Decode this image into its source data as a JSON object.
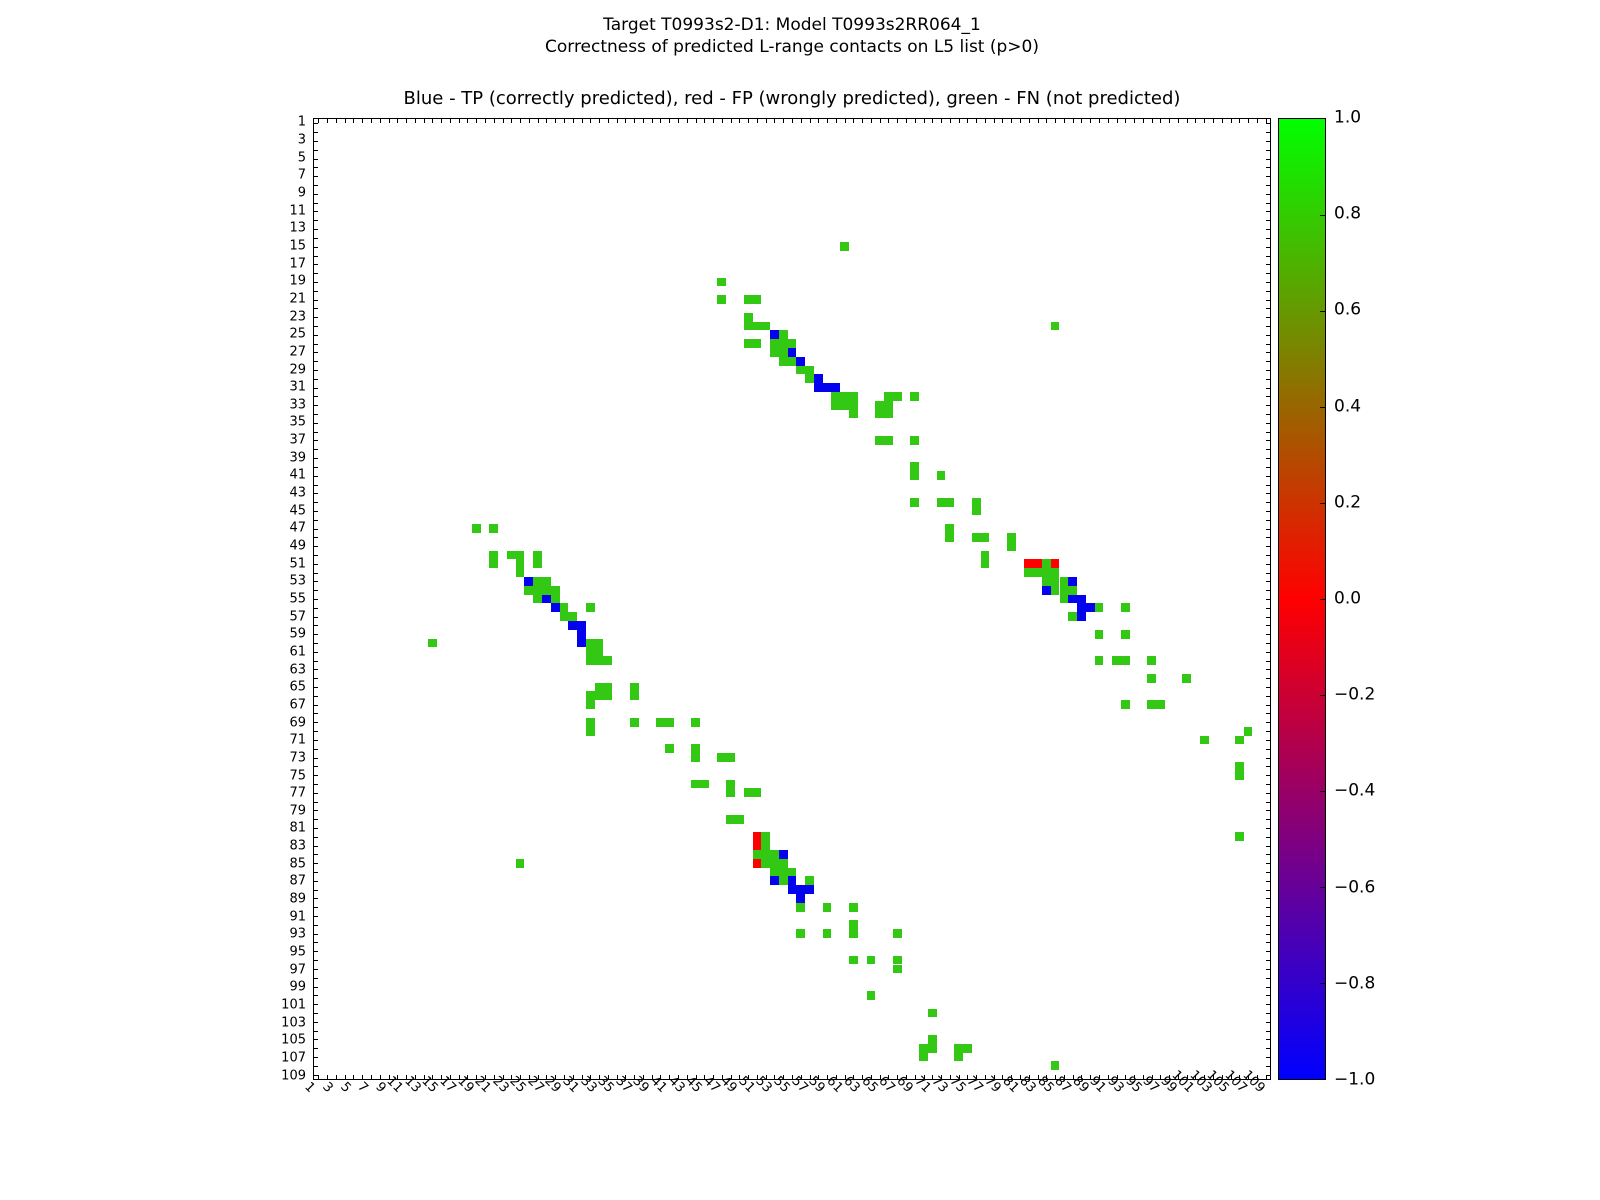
{
  "figure": {
    "suptitle_line1": "Target T0993s2-D1: Model T0993s2RR064_1",
    "suptitle_line2": "Correctness of predicted L-range contacts on L5 list (p>0)",
    "axes_title": "Blue - TP (correctly predicted), red - FP (wrongly predicted), green - FN (not predicted)"
  },
  "axes": {
    "x_min": 1,
    "x_max": 109,
    "y_min": 1,
    "y_max": 109,
    "x_tick_labels": [
      1,
      3,
      5,
      7,
      9,
      11,
      13,
      15,
      17,
      19,
      21,
      23,
      25,
      27,
      29,
      31,
      33,
      35,
      37,
      39,
      41,
      43,
      45,
      47,
      49,
      51,
      53,
      55,
      57,
      59,
      61,
      63,
      65,
      67,
      69,
      71,
      73,
      75,
      77,
      79,
      81,
      83,
      85,
      87,
      89,
      91,
      93,
      95,
      97,
      99,
      101,
      103,
      105,
      107,
      109
    ],
    "y_tick_labels": [
      1,
      3,
      5,
      7,
      9,
      11,
      13,
      15,
      17,
      19,
      21,
      23,
      25,
      27,
      29,
      31,
      33,
      35,
      37,
      39,
      41,
      43,
      45,
      47,
      49,
      51,
      53,
      55,
      57,
      59,
      61,
      63,
      65,
      67,
      69,
      71,
      73,
      75,
      77,
      79,
      81,
      83,
      85,
      87,
      89,
      91,
      93,
      95,
      97,
      99,
      101,
      103,
      105,
      107,
      109
    ]
  },
  "colorbar": {
    "min": -1.0,
    "max": 1.0,
    "tick_labels": [
      "1.0",
      "0.8",
      "0.6",
      "0.4",
      "0.2",
      "0.0",
      "−0.2",
      "−0.4",
      "−0.6",
      "−0.8",
      "−1.0"
    ],
    "color_top": "#00ff00",
    "color_middle": "#ff0000",
    "color_bottom": "#0000ff"
  },
  "chart_data": {
    "type": "heatmap",
    "title": "Blue - TP (correctly predicted), red - FP (wrongly predicted), green - FN (not predicted)",
    "xlabel": "",
    "ylabel": "",
    "x_range": [
      1,
      109
    ],
    "y_range": [
      1,
      109
    ],
    "legend": {
      "tp": {
        "label": "TP (correctly predicted)",
        "color": "#0202ee",
        "value": -1.0
      },
      "fp": {
        "label": "FP (wrongly predicted)",
        "color": "#fe0000",
        "value": 0.0
      },
      "fn": {
        "label": "FN (not predicted)",
        "color": "#32c814",
        "value": 0.8
      }
    },
    "cells": {
      "fn": [
        [
          15,
          61
        ],
        [
          19,
          47
        ],
        [
          21,
          47
        ],
        [
          21,
          50
        ],
        [
          21,
          51
        ],
        [
          23,
          50
        ],
        [
          24,
          50
        ],
        [
          24,
          51
        ],
        [
          24,
          52
        ],
        [
          24,
          85
        ],
        [
          25,
          54
        ],
        [
          26,
          50
        ],
        [
          26,
          51
        ],
        [
          26,
          53
        ],
        [
          26,
          54
        ],
        [
          26,
          55
        ],
        [
          27,
          53
        ],
        [
          27,
          54
        ],
        [
          28,
          54
        ],
        [
          28,
          55
        ],
        [
          29,
          56
        ],
        [
          29,
          57
        ],
        [
          30,
          57
        ],
        [
          32,
          60
        ],
        [
          32,
          61
        ],
        [
          32,
          62
        ],
        [
          32,
          66
        ],
        [
          32,
          67
        ],
        [
          32,
          69
        ],
        [
          33,
          60
        ],
        [
          33,
          61
        ],
        [
          33,
          62
        ],
        [
          33,
          65
        ],
        [
          33,
          66
        ],
        [
          34,
          62
        ],
        [
          34,
          65
        ],
        [
          34,
          66
        ],
        [
          37,
          65
        ],
        [
          37,
          66
        ],
        [
          37,
          69
        ],
        [
          40,
          69
        ],
        [
          41,
          69
        ],
        [
          41,
          72
        ],
        [
          44,
          69
        ],
        [
          44,
          72
        ],
        [
          44,
          73
        ],
        [
          44,
          76
        ],
        [
          45,
          76
        ],
        [
          47,
          19
        ],
        [
          47,
          21
        ],
        [
          47,
          73
        ],
        [
          48,
          73
        ],
        [
          48,
          76
        ],
        [
          48,
          77
        ],
        [
          48,
          80
        ],
        [
          49,
          80
        ],
        [
          50,
          21
        ],
        [
          50,
          23
        ],
        [
          50,
          24
        ],
        [
          50,
          26
        ],
        [
          50,
          77
        ],
        [
          51,
          21
        ],
        [
          51,
          24
        ],
        [
          51,
          26
        ],
        [
          51,
          77
        ],
        [
          51,
          84
        ],
        [
          52,
          24
        ],
        [
          52,
          82
        ],
        [
          52,
          83
        ],
        [
          52,
          84
        ],
        [
          52,
          85
        ],
        [
          53,
          26
        ],
        [
          53,
          27
        ],
        [
          53,
          84
        ],
        [
          53,
          85
        ],
        [
          53,
          86
        ],
        [
          54,
          25
        ],
        [
          54,
          26
        ],
        [
          54,
          27
        ],
        [
          54,
          28
        ],
        [
          54,
          85
        ],
        [
          54,
          86
        ],
        [
          54,
          87
        ],
        [
          55,
          26
        ],
        [
          55,
          28
        ],
        [
          55,
          86
        ],
        [
          56,
          29
        ],
        [
          56,
          32
        ],
        [
          56,
          90
        ],
        [
          56,
          93
        ],
        [
          57,
          29
        ],
        [
          57,
          30
        ],
        [
          57,
          87
        ],
        [
          59,
          90
        ],
        [
          59,
          93
        ],
        [
          60,
          14
        ],
        [
          60,
          32
        ],
        [
          60,
          33
        ],
        [
          61,
          32
        ],
        [
          61,
          33
        ],
        [
          62,
          32
        ],
        [
          62,
          33
        ],
        [
          62,
          34
        ],
        [
          62,
          90
        ],
        [
          62,
          92
        ],
        [
          62,
          93
        ],
        [
          62,
          96
        ],
        [
          64,
          96
        ],
        [
          64,
          100
        ],
        [
          65,
          33
        ],
        [
          65,
          34
        ],
        [
          65,
          37
        ],
        [
          66,
          32
        ],
        [
          66,
          33
        ],
        [
          66,
          34
        ],
        [
          66,
          37
        ],
        [
          67,
          32
        ],
        [
          67,
          93
        ],
        [
          67,
          96
        ],
        [
          67,
          97
        ],
        [
          69,
          32
        ],
        [
          69,
          37
        ],
        [
          69,
          40
        ],
        [
          69,
          41
        ],
        [
          69,
          44
        ],
        [
          70,
          32
        ],
        [
          70,
          107
        ],
        [
          71,
          102
        ],
        [
          71,
          106
        ],
        [
          72,
          41
        ],
        [
          72,
          44
        ],
        [
          73,
          44
        ],
        [
          73,
          47
        ],
        [
          73,
          48
        ],
        [
          74,
          106
        ],
        [
          75,
          106
        ],
        [
          76,
          44
        ],
        [
          76,
          45
        ],
        [
          76,
          48
        ],
        [
          77,
          48
        ],
        [
          77,
          50
        ],
        [
          77,
          51
        ],
        [
          80,
          48
        ],
        [
          80,
          49
        ],
        [
          82,
          52
        ],
        [
          82,
          106
        ],
        [
          83,
          52
        ],
        [
          84,
          51
        ],
        [
          84,
          52
        ],
        [
          84,
          53
        ],
        [
          85,
          24
        ],
        [
          85,
          52
        ],
        [
          85,
          53
        ],
        [
          85,
          54
        ],
        [
          86,
          53
        ],
        [
          86,
          54
        ],
        [
          86,
          55
        ],
        [
          87,
          54
        ],
        [
          87,
          57
        ],
        [
          90,
          56
        ],
        [
          90,
          59
        ],
        [
          90,
          62
        ],
        [
          92,
          62
        ],
        [
          93,
          56
        ],
        [
          93,
          59
        ],
        [
          93,
          62
        ],
        [
          93,
          67
        ],
        [
          96,
          62
        ],
        [
          96,
          64
        ],
        [
          96,
          67
        ],
        [
          97,
          67
        ],
        [
          100,
          64
        ],
        [
          102,
          71
        ],
        [
          105,
          71
        ],
        [
          106,
          70
        ],
        [
          106,
          71
        ],
        [
          106,
          74
        ],
        [
          106,
          75
        ],
        [
          107,
          70
        ],
        [
          107,
          74
        ],
        [
          108,
          85
        ]
      ],
      "tp": [
        [
          25,
          53
        ],
        [
          27,
          55
        ],
        [
          28,
          56
        ],
        [
          30,
          58
        ],
        [
          31,
          58
        ],
        [
          31,
          59
        ],
        [
          31,
          60
        ],
        [
          53,
          25
        ],
        [
          53,
          87
        ],
        [
          54,
          84
        ],
        [
          55,
          27
        ],
        [
          55,
          87
        ],
        [
          55,
          88
        ],
        [
          56,
          28
        ],
        [
          56,
          88
        ],
        [
          56,
          89
        ],
        [
          57,
          88
        ],
        [
          58,
          30
        ],
        [
          58,
          31
        ],
        [
          59,
          31
        ],
        [
          60,
          31
        ],
        [
          84,
          54
        ],
        [
          87,
          53
        ],
        [
          87,
          55
        ],
        [
          88,
          55
        ],
        [
          88,
          56
        ],
        [
          88,
          57
        ],
        [
          89,
          56
        ]
      ],
      "fp": [
        [
          51,
          82
        ],
        [
          51,
          83
        ],
        [
          51,
          85
        ],
        [
          82,
          51
        ],
        [
          83,
          51
        ],
        [
          85,
          51
        ]
      ]
    }
  }
}
